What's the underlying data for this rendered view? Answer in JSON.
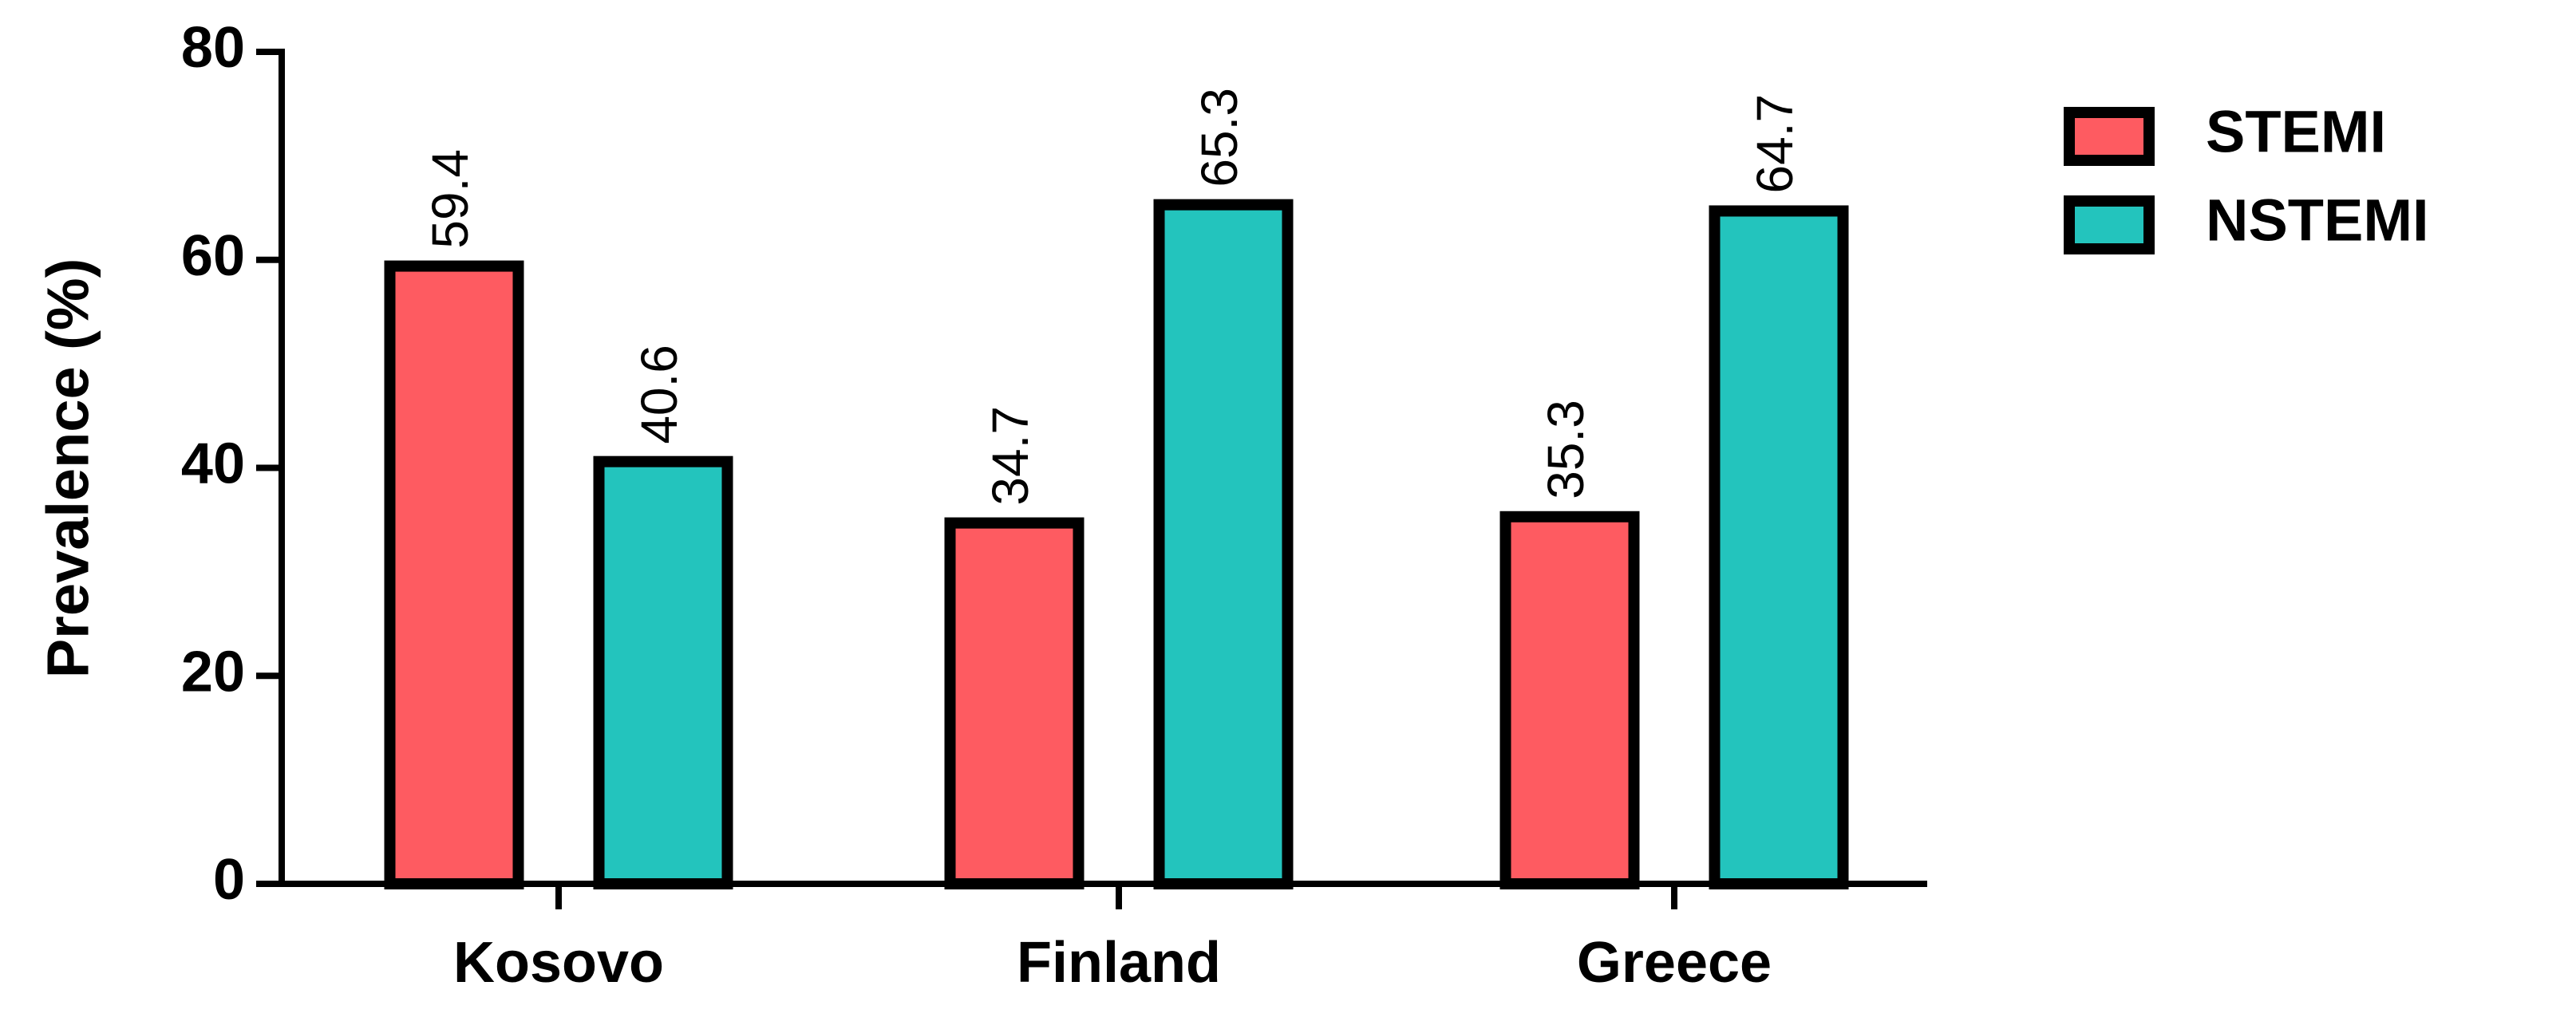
{
  "chart_data": {
    "type": "bar",
    "y_label": "Prevalence (%)",
    "categories": [
      "Kosovo",
      "Finland",
      "Greece"
    ],
    "series": [
      {
        "name": "STEMI",
        "color": "#fe5b61",
        "values": [
          59.4,
          34.7,
          35.3
        ]
      },
      {
        "name": "NSTEMI",
        "color": "#23c4bd",
        "values": [
          40.6,
          65.3,
          64.7
        ]
      }
    ],
    "ylim": [
      0,
      80
    ],
    "yticks": [
      0,
      20,
      40,
      60,
      80
    ],
    "legend": "right",
    "value_labels_shown": true
  }
}
